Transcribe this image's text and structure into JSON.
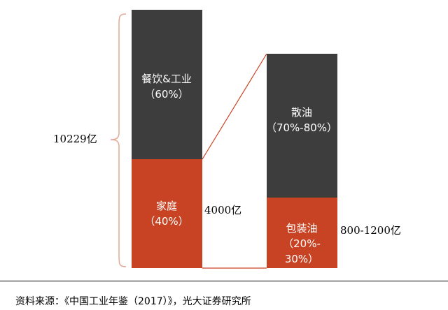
{
  "chart_data": {
    "type": "bar",
    "subtype": "stacked-breakdown",
    "bars": [
      {
        "name": "",
        "total_label": "10229亿",
        "segments": [
          {
            "label": "家庭",
            "share_label": "（40%）",
            "value": 40,
            "color": "#c84323"
          },
          {
            "label": "餐饮&工业",
            "share_label": "（60%）",
            "value": 60,
            "color": "#3d3d3d"
          }
        ]
      },
      {
        "name": "",
        "total_label": "4000亿",
        "segments": [
          {
            "label": "包装油",
            "share_label": "（20%-30%）",
            "share_label_lines": [
              "（20%-",
              "30%）"
            ],
            "value": 25,
            "color": "#c84323",
            "value_label": "800-1200亿"
          },
          {
            "label": "散油",
            "share_label": "（70%-80%）",
            "value": 75,
            "color": "#3d3d3d"
          }
        ]
      }
    ],
    "connector": "家庭 segment expanded into the second bar"
  },
  "source": "资料来源：《中国工业年鉴（2017）》，光大证券研究所",
  "colors": {
    "dark": "#3d3d3d",
    "accent": "#c84323",
    "bracket": "#e4a994",
    "connector": "#c84323"
  }
}
